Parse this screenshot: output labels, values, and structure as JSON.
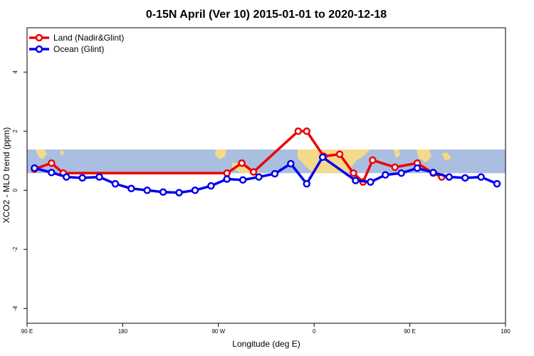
{
  "chart_data": {
    "type": "line",
    "title": "0-15N April (Ver 10)   2015-01-01 to 2020-12-18",
    "xlabel": "Longitude (deg E)",
    "ylabel": "XCO2 - MLO trend (ppm)",
    "xlim": [
      90,
      540
    ],
    "ylim": [
      -4.5,
      5.5
    ],
    "x_ticks": [
      {
        "value": 90,
        "label": "90 E"
      },
      {
        "value": 180,
        "label": "180"
      },
      {
        "value": 270,
        "label": "90 W"
      },
      {
        "value": 360,
        "label": "0"
      },
      {
        "value": 450,
        "label": "90 E"
      },
      {
        "value": 540,
        "label": "180"
      }
    ],
    "y_ticks": [
      {
        "value": -4,
        "label": "-4"
      },
      {
        "value": -2,
        "label": "-2"
      },
      {
        "value": 0,
        "label": "0"
      },
      {
        "value": 2,
        "label": "2"
      },
      {
        "value": 4,
        "label": "4"
      }
    ],
    "legend_position": "top-left",
    "background_band": {
      "ymin": 0.58,
      "ymax": 1.38,
      "color": "#a9bee0",
      "land_color": "#f5d98a"
    },
    "series": [
      {
        "name": "Land (Nadir&Glint)",
        "color": "#ee0000",
        "x": [
          97,
          113,
          124,
          278,
          292,
          303,
          345,
          353,
          369,
          384,
          397,
          406,
          415,
          436,
          457,
          472,
          480
        ],
        "y": [
          0.72,
          0.92,
          0.58,
          0.58,
          0.92,
          0.62,
          2.0,
          2.0,
          1.15,
          1.22,
          0.58,
          0.28,
          1.02,
          0.78,
          0.92,
          0.58,
          0.45
        ]
      },
      {
        "name": "Ocean (Glint)",
        "color": "#0000ee",
        "x": [
          97,
          113,
          127,
          142,
          158,
          173,
          188,
          203,
          218,
          233,
          248,
          263,
          278,
          293,
          308,
          323,
          338,
          353,
          368,
          399,
          413,
          427,
          442,
          457,
          472,
          487,
          502,
          517,
          532
        ],
        "y": [
          0.75,
          0.6,
          0.45,
          0.42,
          0.45,
          0.22,
          0.06,
          0.0,
          -0.06,
          -0.08,
          0.0,
          0.15,
          0.38,
          0.35,
          0.45,
          0.56,
          0.9,
          0.22,
          1.12,
          0.33,
          0.28,
          0.52,
          0.58,
          0.75,
          0.6,
          0.45,
          0.42,
          0.45,
          0.22
        ]
      }
    ]
  }
}
